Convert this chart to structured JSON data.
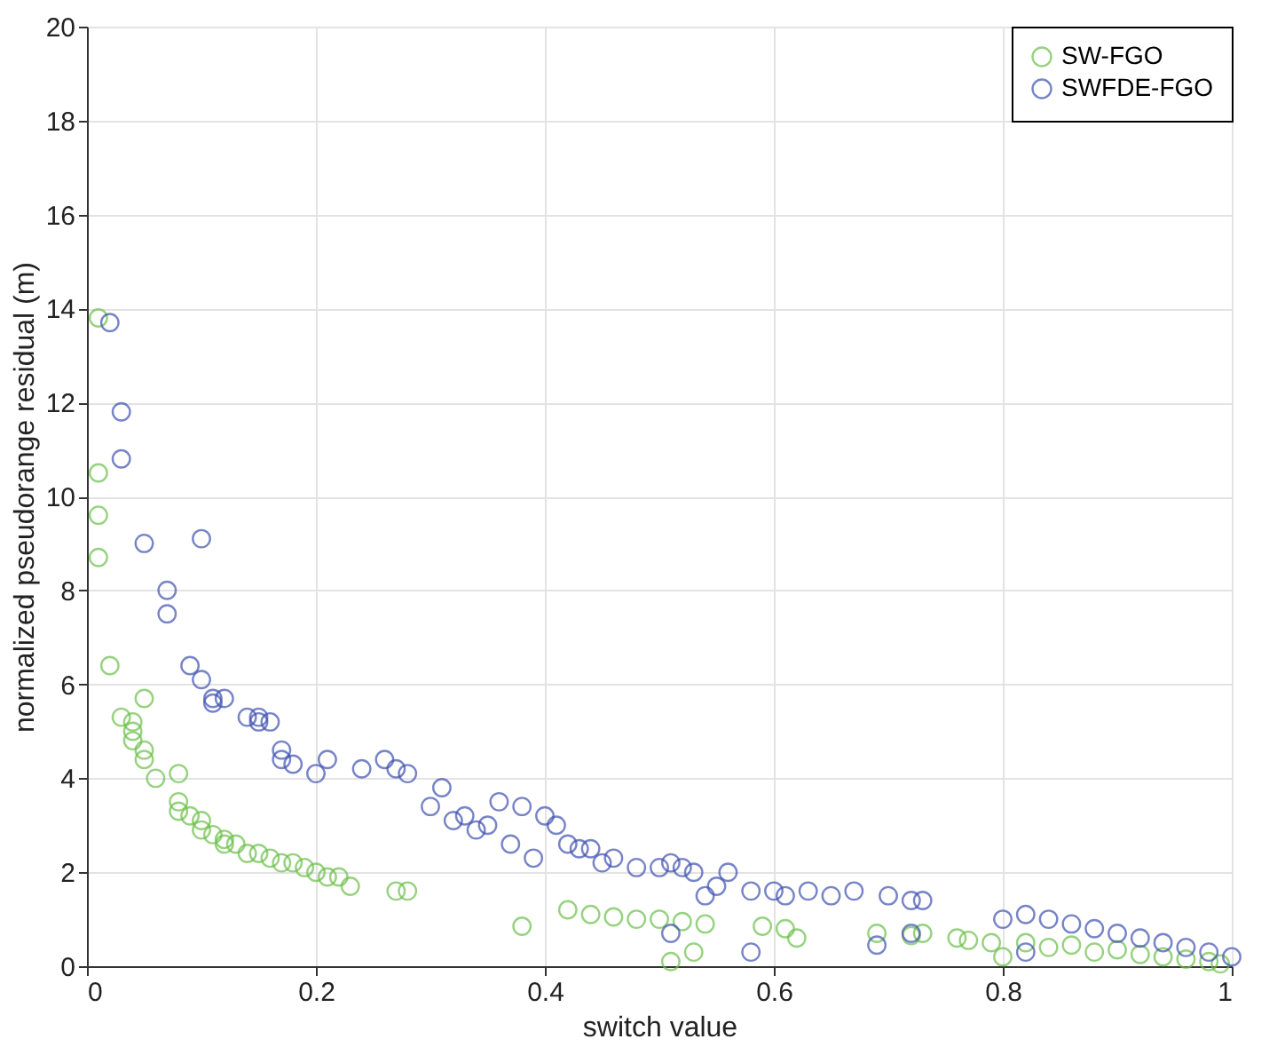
{
  "chart_data": {
    "type": "scatter",
    "xlabel": "switch value",
    "ylabel": "normalized pseudorange residual (m)",
    "xlim": [
      0,
      1
    ],
    "ylim": [
      0,
      20
    ],
    "xticks": [
      0,
      0.2,
      0.4,
      0.6,
      0.8,
      1
    ],
    "yticks": [
      0,
      2,
      4,
      6,
      8,
      10,
      12,
      14,
      16,
      18,
      20
    ],
    "grid": true,
    "legend": "top right",
    "marker": "circle",
    "series": [
      {
        "name": "SW-FGO",
        "color": "#6cc04a",
        "x": [
          0.01,
          0.01,
          0.01,
          0.01,
          0.02,
          0.03,
          0.04,
          0.04,
          0.04,
          0.05,
          0.05,
          0.05,
          0.06,
          0.08,
          0.08,
          0.08,
          0.09,
          0.1,
          0.1,
          0.11,
          0.12,
          0.12,
          0.13,
          0.14,
          0.15,
          0.16,
          0.17,
          0.18,
          0.19,
          0.2,
          0.21,
          0.22,
          0.23,
          0.27,
          0.28,
          0.38,
          0.42,
          0.44,
          0.46,
          0.48,
          0.5,
          0.51,
          0.52,
          0.53,
          0.54,
          0.59,
          0.61,
          0.62,
          0.69,
          0.72,
          0.73,
          0.76,
          0.77,
          0.79,
          0.8,
          0.82,
          0.84,
          0.86,
          0.88,
          0.9,
          0.92,
          0.94,
          0.96,
          0.98,
          0.99
        ],
        "values": [
          13.8,
          10.5,
          9.6,
          8.7,
          6.4,
          5.3,
          5.2,
          5.0,
          4.8,
          5.7,
          4.6,
          4.4,
          4.0,
          4.1,
          3.5,
          3.3,
          3.2,
          3.1,
          2.9,
          2.8,
          2.7,
          2.6,
          2.6,
          2.4,
          2.4,
          2.3,
          2.2,
          2.2,
          2.1,
          2.0,
          1.9,
          1.9,
          1.7,
          1.6,
          1.6,
          0.85,
          1.2,
          1.1,
          1.05,
          1.0,
          1.0,
          0.1,
          0.95,
          0.3,
          0.9,
          0.85,
          0.8,
          0.6,
          0.7,
          0.65,
          0.7,
          0.6,
          0.55,
          0.5,
          0.2,
          0.5,
          0.4,
          0.45,
          0.3,
          0.35,
          0.25,
          0.2,
          0.15,
          0.1,
          0.05
        ]
      },
      {
        "name": "SWFDE-FGO",
        "color": "#3f51b0",
        "x": [
          0.02,
          0.03,
          0.03,
          0.05,
          0.1,
          0.07,
          0.07,
          0.09,
          0.1,
          0.11,
          0.11,
          0.12,
          0.14,
          0.15,
          0.15,
          0.16,
          0.17,
          0.17,
          0.18,
          0.2,
          0.21,
          0.24,
          0.26,
          0.27,
          0.28,
          0.3,
          0.31,
          0.32,
          0.33,
          0.34,
          0.35,
          0.36,
          0.37,
          0.38,
          0.39,
          0.4,
          0.41,
          0.42,
          0.43,
          0.44,
          0.45,
          0.46,
          0.48,
          0.5,
          0.51,
          0.52,
          0.53,
          0.54,
          0.55,
          0.56,
          0.51,
          0.58,
          0.6,
          0.61,
          0.63,
          0.65,
          0.67,
          0.7,
          0.72,
          0.72,
          0.73,
          0.69,
          0.58,
          0.8,
          0.82,
          0.84,
          0.86,
          0.88,
          0.9,
          0.92,
          0.94,
          0.96,
          0.98,
          1.0,
          0.82
        ],
        "values": [
          13.7,
          11.8,
          10.8,
          9.0,
          9.1,
          8.0,
          7.5,
          6.4,
          6.1,
          5.7,
          5.6,
          5.7,
          5.3,
          5.2,
          5.3,
          5.2,
          4.6,
          4.4,
          4.3,
          4.1,
          4.4,
          4.2,
          4.4,
          4.2,
          4.1,
          3.4,
          3.8,
          3.1,
          3.2,
          2.9,
          3.0,
          3.5,
          2.6,
          3.4,
          2.3,
          3.2,
          3.0,
          2.6,
          2.5,
          2.5,
          2.2,
          2.3,
          2.1,
          2.1,
          2.2,
          2.1,
          2.0,
          1.5,
          1.7,
          2.0,
          0.7,
          1.6,
          1.6,
          1.5,
          1.6,
          1.5,
          1.6,
          1.5,
          1.4,
          0.7,
          1.4,
          0.45,
          0.3,
          1.0,
          1.1,
          1.0,
          0.9,
          0.8,
          0.7,
          0.6,
          0.5,
          0.4,
          0.3,
          0.2,
          0.3
        ]
      }
    ]
  }
}
